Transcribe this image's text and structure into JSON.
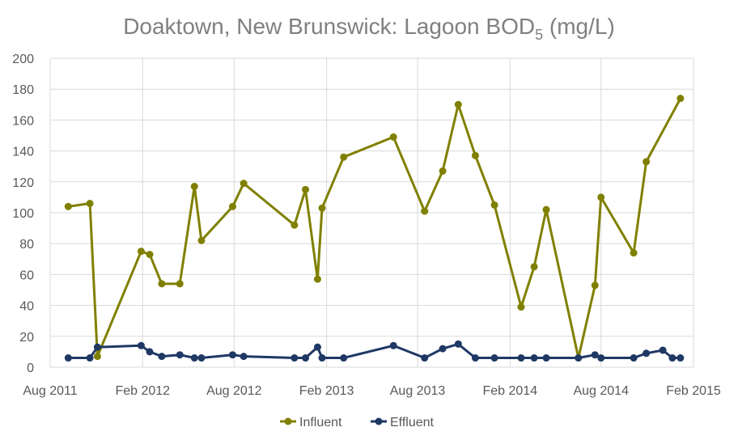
{
  "chart_data": {
    "type": "line",
    "title": {
      "main": "Doaktown, New Brunswick: Lagoon BOD",
      "subscript": "5",
      "suffix": " (mg/L)"
    },
    "xlabel": "",
    "ylabel": "",
    "ylim": [
      0,
      200
    ],
    "yticks": [
      "0",
      "20",
      "40",
      "60",
      "80",
      "100",
      "120",
      "140",
      "160",
      "180",
      "200"
    ],
    "xlim": [
      "2011-08-01",
      "2015-02-01"
    ],
    "xticks": [
      {
        "date": "2011-08-01",
        "label": "Aug 2011"
      },
      {
        "date": "2012-02-01",
        "label": "Feb 2012"
      },
      {
        "date": "2012-08-01",
        "label": "Aug 2012"
      },
      {
        "date": "2013-02-01",
        "label": "Feb 2013"
      },
      {
        "date": "2013-08-01",
        "label": "Aug 2013"
      },
      {
        "date": "2014-02-01",
        "label": "Feb 2014"
      },
      {
        "date": "2014-08-01",
        "label": "Aug 2014"
      },
      {
        "date": "2015-02-01",
        "label": "Feb 2015"
      }
    ],
    "grid": true,
    "legend_position": "bottom",
    "series": [
      {
        "name": "Influent",
        "color": "#808000",
        "points": [
          [
            "2011-09-06",
            104
          ],
          [
            "2011-10-19",
            106
          ],
          [
            "2011-11-03",
            7
          ],
          [
            "2012-01-29",
            75
          ],
          [
            "2012-02-15",
            73
          ],
          [
            "2012-03-10",
            54
          ],
          [
            "2012-04-15",
            54
          ],
          [
            "2012-05-14",
            117
          ],
          [
            "2012-05-28",
            82
          ],
          [
            "2012-07-29",
            104
          ],
          [
            "2012-08-20",
            119
          ],
          [
            "2012-11-29",
            92
          ],
          [
            "2012-12-21",
            115
          ],
          [
            "2013-01-14",
            57
          ],
          [
            "2013-01-23",
            103
          ],
          [
            "2013-03-07",
            136
          ],
          [
            "2013-06-14",
            149
          ],
          [
            "2013-08-15",
            101
          ],
          [
            "2013-09-20",
            127
          ],
          [
            "2013-10-21",
            170
          ],
          [
            "2013-11-24",
            137
          ],
          [
            "2014-01-01",
            105
          ],
          [
            "2014-02-23",
            39
          ],
          [
            "2014-03-21",
            65
          ],
          [
            "2014-04-14",
            102
          ],
          [
            "2014-06-17",
            6
          ],
          [
            "2014-07-20",
            53
          ],
          [
            "2014-08-01",
            110
          ],
          [
            "2014-10-05",
            74
          ],
          [
            "2014-10-30",
            133
          ],
          [
            "2015-01-06",
            174
          ]
        ]
      },
      {
        "name": "Effluent",
        "color": "#1f3864",
        "points": [
          [
            "2011-09-06",
            6
          ],
          [
            "2011-10-19",
            6
          ],
          [
            "2011-11-03",
            13
          ],
          [
            "2012-01-29",
            14
          ],
          [
            "2012-02-15",
            10
          ],
          [
            "2012-03-10",
            7
          ],
          [
            "2012-04-15",
            8
          ],
          [
            "2012-05-14",
            6
          ],
          [
            "2012-05-28",
            6
          ],
          [
            "2012-07-29",
            8
          ],
          [
            "2012-08-20",
            7
          ],
          [
            "2012-11-29",
            6
          ],
          [
            "2012-12-21",
            6
          ],
          [
            "2013-01-14",
            13
          ],
          [
            "2013-01-23",
            6
          ],
          [
            "2013-03-07",
            6
          ],
          [
            "2013-06-14",
            14
          ],
          [
            "2013-08-15",
            6
          ],
          [
            "2013-09-20",
            12
          ],
          [
            "2013-10-21",
            15
          ],
          [
            "2013-11-24",
            6
          ],
          [
            "2014-01-01",
            6
          ],
          [
            "2014-02-23",
            6
          ],
          [
            "2014-03-21",
            6
          ],
          [
            "2014-04-14",
            6
          ],
          [
            "2014-06-17",
            6
          ],
          [
            "2014-07-20",
            8
          ],
          [
            "2014-08-01",
            6
          ],
          [
            "2014-10-05",
            6
          ],
          [
            "2014-10-30",
            9
          ],
          [
            "2014-12-02",
            11
          ],
          [
            "2014-12-21",
            6
          ],
          [
            "2015-01-06",
            6
          ]
        ]
      }
    ]
  }
}
